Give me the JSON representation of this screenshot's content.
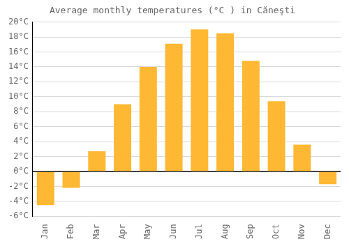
{
  "chart_data": {
    "type": "bar",
    "title": "Average monthly temperatures (°C ) in Căneşti",
    "categories": [
      "Jan",
      "Feb",
      "Mar",
      "Apr",
      "May",
      "Jun",
      "Jul",
      "Aug",
      "Sep",
      "Oct",
      "Nov",
      "Dec"
    ],
    "values": [
      -4.5,
      -2.2,
      2.7,
      9.0,
      14.0,
      17.1,
      19.0,
      18.5,
      14.8,
      9.4,
      3.6,
      -1.7
    ],
    "color": "#FFB833",
    "ylim": [
      -6,
      20
    ],
    "yticks": [
      {
        "value": -6,
        "label": "-6°C"
      },
      {
        "value": -4,
        "label": "-4°C"
      },
      {
        "value": -2,
        "label": "-2°C"
      },
      {
        "value": 0,
        "label": "0°C"
      },
      {
        "value": 2,
        "label": "2°C"
      },
      {
        "value": 4,
        "label": "4°C"
      },
      {
        "value": 6,
        "label": "6°C"
      },
      {
        "value": 8,
        "label": "8°C"
      },
      {
        "value": 10,
        "label": "10°C"
      },
      {
        "value": 12,
        "label": "12°C"
      },
      {
        "value": 14,
        "label": "14°C"
      },
      {
        "value": 16,
        "label": "16°C"
      },
      {
        "value": 18,
        "label": "18°C"
      },
      {
        "value": 20,
        "label": "20°C"
      }
    ],
    "grid": true
  }
}
